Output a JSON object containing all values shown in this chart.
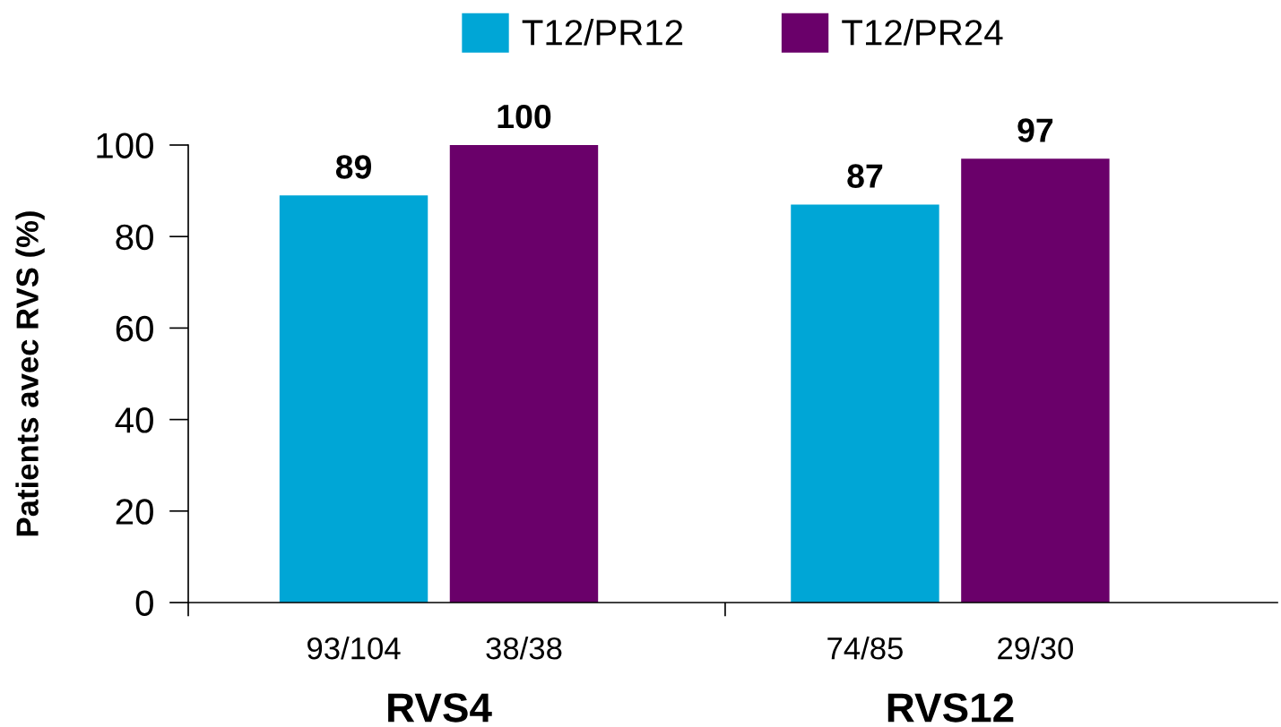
{
  "chart_data": {
    "type": "bar",
    "categories": [
      "RVS4",
      "RVS12"
    ],
    "series": [
      {
        "name": "T12/PR12",
        "color": "#00a6d6",
        "values": [
          89,
          87
        ]
      },
      {
        "name": "T12/PR24",
        "color": "#6a006a",
        "values": [
          100,
          97
        ]
      }
    ],
    "ylabel": "Patients avec RVS (%)",
    "ylim": [
      0,
      100
    ],
    "yticks": [
      0,
      20,
      40,
      60,
      80,
      100
    ],
    "data_labels": true,
    "annotations": [
      "93/104",
      "38/38",
      "74/85",
      "29/30"
    ],
    "legend": "top",
    "grid": false
  }
}
